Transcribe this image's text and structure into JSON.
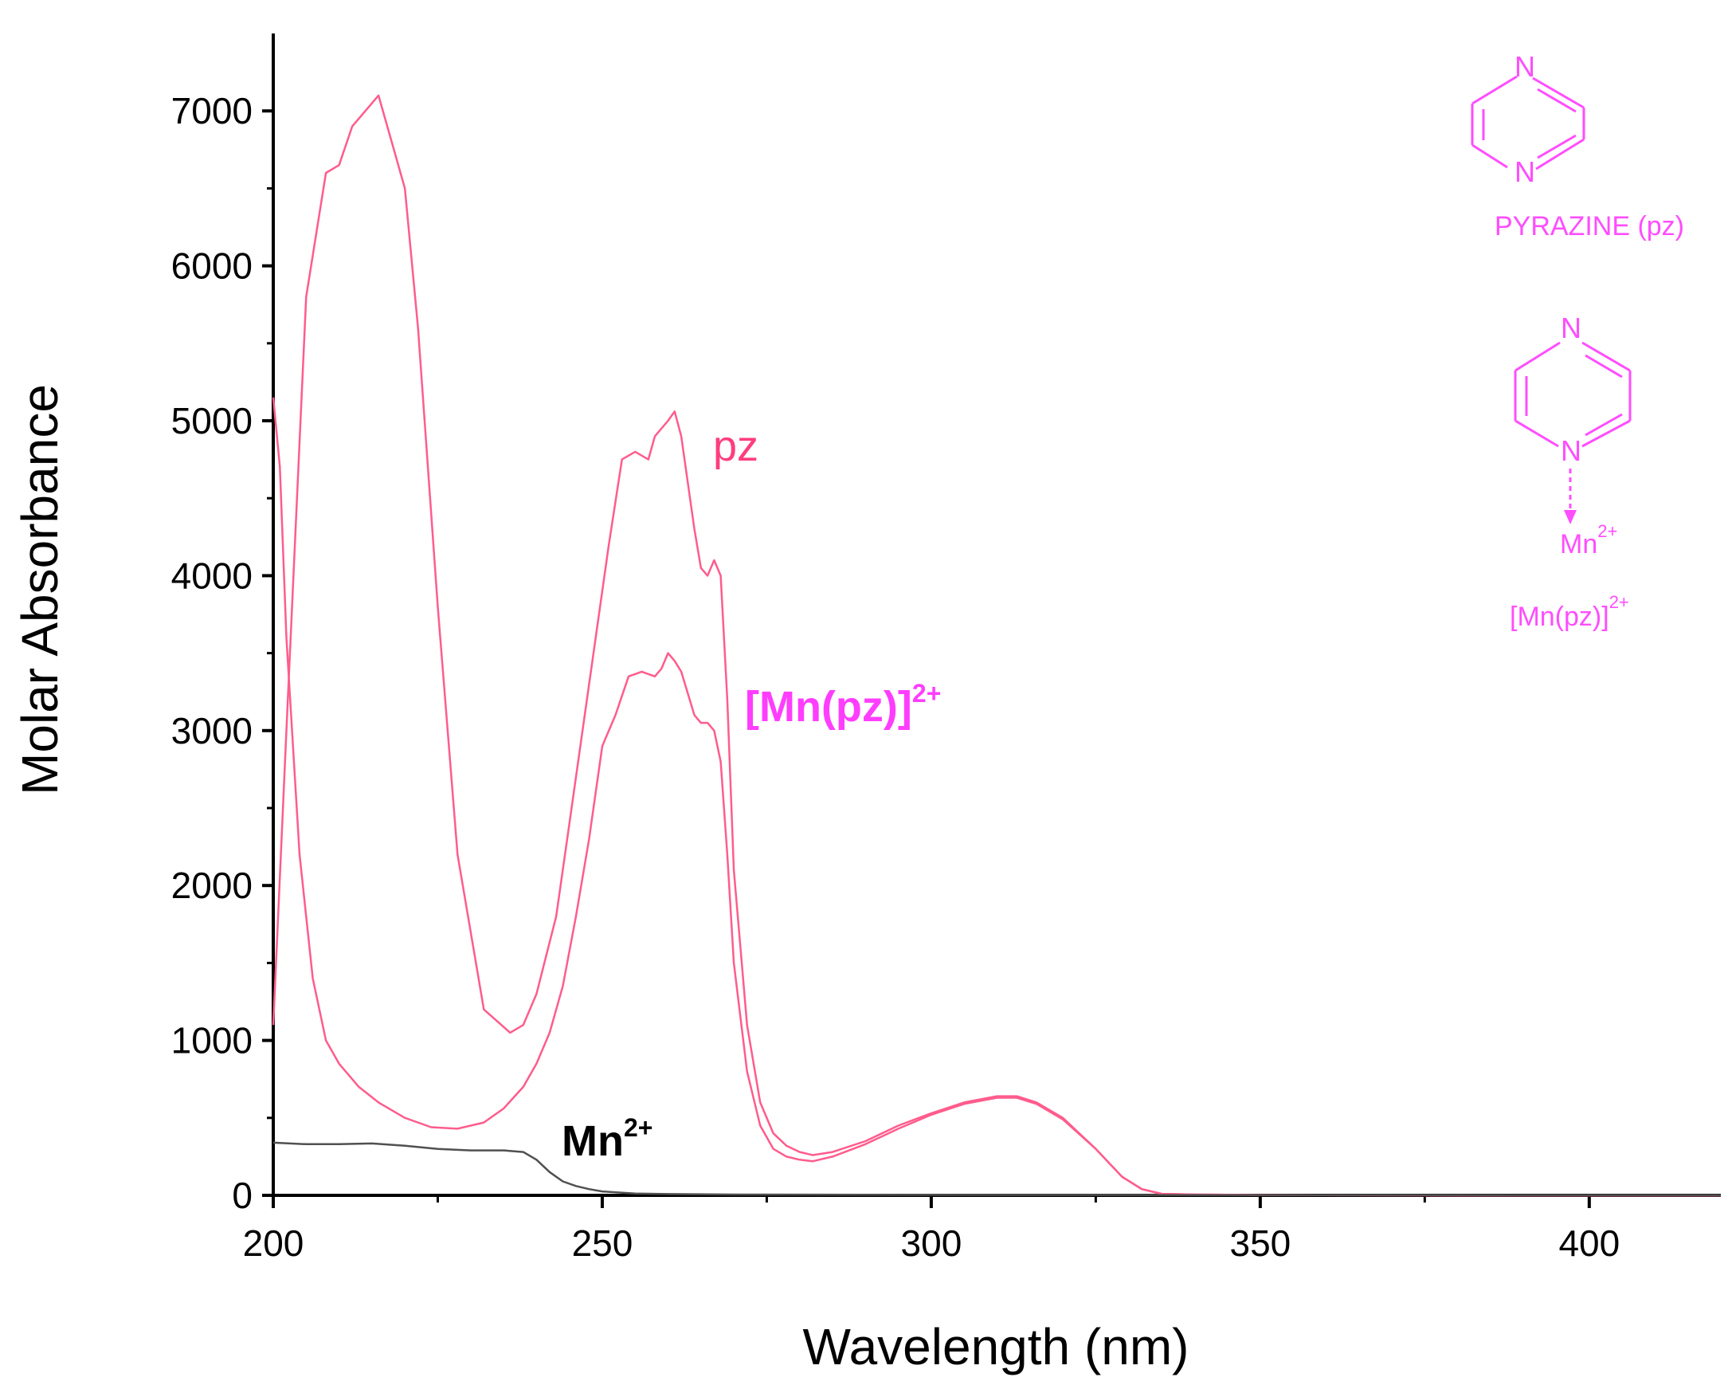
{
  "chart_data": {
    "type": "line",
    "xlabel": "Wavelength (nm)",
    "ylabel": "Molar Absorbance",
    "xlim": [
      200,
      420
    ],
    "ylim": [
      0,
      7500
    ],
    "x_ticks": [
      200,
      250,
      300,
      350,
      400
    ],
    "y_ticks": [
      0,
      1000,
      2000,
      3000,
      4000,
      5000,
      6000,
      7000
    ],
    "grid": false,
    "series": [
      {
        "name": "pz",
        "color": "#ff5c8d",
        "x": [
          200,
          202,
          205,
          208,
          210,
          212,
          214,
          216,
          218,
          220,
          222,
          225,
          228,
          232,
          236,
          238,
          240,
          243,
          245,
          247,
          249,
          251,
          253,
          255,
          257,
          258,
          260,
          261,
          262,
          264,
          265,
          266,
          267,
          268,
          269,
          270,
          272,
          274,
          276,
          278,
          280,
          282,
          285,
          290,
          295,
          300,
          305,
          310,
          313,
          316,
          320,
          325,
          329,
          332,
          335,
          340,
          350,
          380,
          420
        ],
        "y": [
          1100,
          3000,
          5800,
          6600,
          6650,
          6900,
          7000,
          7100,
          6800,
          6500,
          5600,
          3800,
          2200,
          1200,
          1050,
          1100,
          1300,
          1800,
          2400,
          3000,
          3600,
          4200,
          4750,
          4800,
          4750,
          4900,
          5000,
          5060,
          4900,
          4300,
          4050,
          4000,
          4100,
          4000,
          3200,
          2100,
          1100,
          600,
          400,
          320,
          280,
          260,
          280,
          350,
          450,
          530,
          600,
          640,
          640,
          600,
          500,
          300,
          120,
          40,
          10,
          5,
          2,
          0,
          0
        ]
      },
      {
        "name": "[Mn(pz)]2+",
        "color": "#ff5c8d",
        "x": [
          200,
          201,
          202,
          204,
          206,
          208,
          210,
          213,
          216,
          220,
          224,
          228,
          232,
          235,
          238,
          240,
          242,
          244,
          246,
          248,
          250,
          252,
          254,
          256,
          258,
          259,
          260,
          261,
          262,
          264,
          265,
          266,
          267,
          268,
          269,
          270,
          272,
          274,
          276,
          278,
          280,
          282,
          285,
          290,
          295,
          300,
          305,
          310,
          313,
          316,
          320,
          325,
          329,
          332,
          335,
          340,
          350,
          380,
          420
        ],
        "y": [
          5150,
          4700,
          3600,
          2200,
          1400,
          1000,
          850,
          700,
          600,
          500,
          440,
          430,
          470,
          560,
          700,
          850,
          1050,
          1350,
          1800,
          2300,
          2900,
          3100,
          3350,
          3380,
          3350,
          3400,
          3500,
          3450,
          3380,
          3100,
          3050,
          3050,
          3000,
          2800,
          2200,
          1500,
          800,
          450,
          300,
          250,
          230,
          220,
          250,
          330,
          430,
          520,
          590,
          630,
          630,
          590,
          490,
          300,
          120,
          40,
          10,
          5,
          2,
          0,
          0
        ]
      },
      {
        "name": "Mn2+",
        "color": "#505050",
        "x": [
          200,
          205,
          210,
          215,
          220,
          225,
          230,
          235,
          238,
          240,
          242,
          244,
          246,
          248,
          250,
          255,
          260,
          270,
          300,
          350,
          420
        ],
        "y": [
          340,
          330,
          330,
          335,
          320,
          300,
          290,
          290,
          280,
          230,
          150,
          90,
          60,
          40,
          25,
          12,
          8,
          5,
          3,
          2,
          1
        ]
      }
    ],
    "annotations": {
      "pz_label": "pz",
      "mnpz_label_main": "[Mn(pz)]",
      "mnpz_label_sup": "2+",
      "mn_label_main": "Mn",
      "mn_label_sup": "2+"
    }
  },
  "inset": {
    "nitrogen": "N",
    "pyrazine_caption": "PYRAZINE (pz)",
    "metal_main": "Mn",
    "metal_sup": "2+",
    "complex_main": "[Mn(pz)]",
    "complex_sup": "2+",
    "color": "#ff4dff"
  }
}
